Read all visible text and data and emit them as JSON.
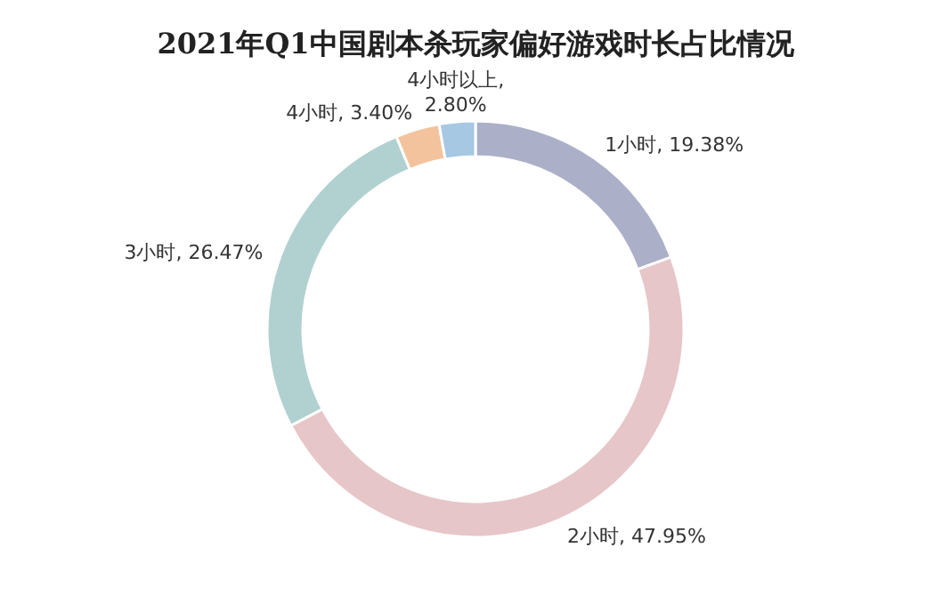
{
  "chart_data": {
    "type": "donut",
    "title": "2021年Q1中国剧本杀玩家偏好游戏时长占比情况",
    "categories": [
      "1小时",
      "2小时",
      "3小时",
      "4小时",
      "4小时以上"
    ],
    "values": [
      19.38,
      47.95,
      26.47,
      3.4,
      2.8
    ],
    "colors": [
      "#abafc8",
      "#e6c6c8",
      "#b1d1d1",
      "#f3c39d",
      "#a6c8e2"
    ],
    "value_labels": [
      ", 19.38%",
      ", 47.95%",
      ", 26.47%",
      ", 3.40%",
      ", 2.80%"
    ]
  }
}
